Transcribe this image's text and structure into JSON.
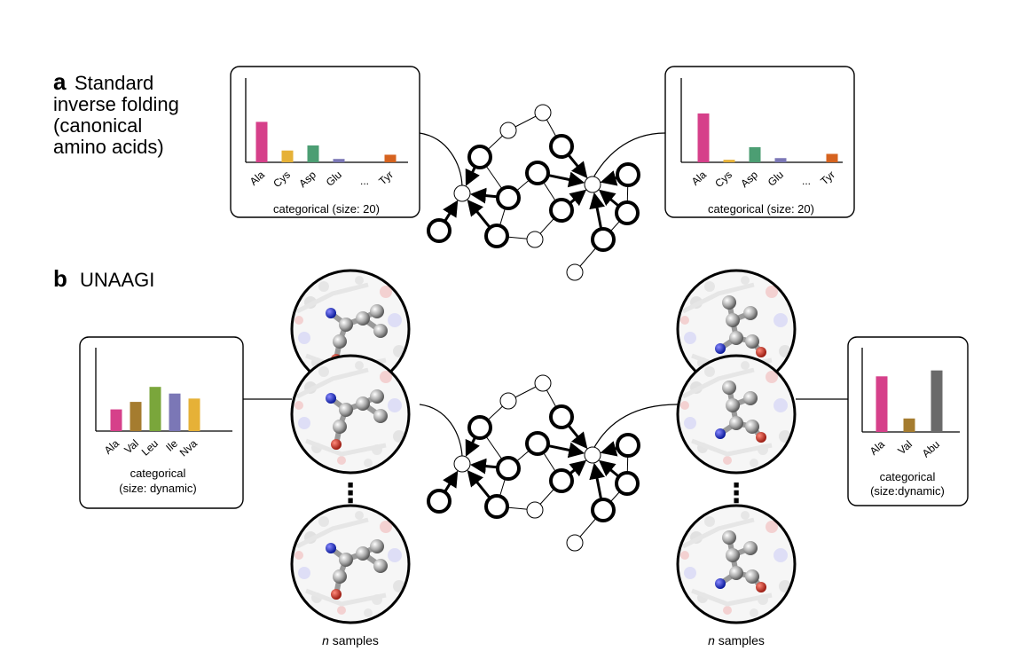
{
  "section_a": {
    "letter": "a",
    "title_lines": [
      "Standard",
      "inverse folding",
      "(canonical",
      "amino acids)"
    ]
  },
  "section_b": {
    "letter": "b",
    "title": "UNAAGI"
  },
  "chart_data": [
    {
      "type": "bar",
      "categories": [
        "Ala",
        "Cys",
        "Asp",
        "Glu",
        "...",
        "Tyr"
      ],
      "values": [
        0.48,
        0.14,
        0.2,
        0.04,
        0,
        0.09
      ],
      "colors": [
        "#d6408a",
        "#e6b137",
        "#4c9e73",
        "#7b77b6",
        "#ffffff",
        "#d6631f"
      ],
      "caption": "categorical (size: 20)"
    },
    {
      "type": "bar",
      "categories": [
        "Ala",
        "Cys",
        "Asp",
        "Glu",
        "...",
        "Tyr"
      ],
      "values": [
        0.58,
        0.03,
        0.18,
        0.05,
        0,
        0.1
      ],
      "colors": [
        "#d6408a",
        "#e6b137",
        "#4c9e73",
        "#7b77b6",
        "#ffffff",
        "#d6631f"
      ],
      "caption": "categorical (size: 20)"
    },
    {
      "type": "bar",
      "categories": [
        "Ala",
        "Val",
        "Leu",
        "Ile",
        "Nva"
      ],
      "values": [
        0.26,
        0.35,
        0.53,
        0.45,
        0.39
      ],
      "colors": [
        "#d6408a",
        "#a57c2f",
        "#7aa63b",
        "#7b77b6",
        "#e6b137"
      ],
      "caption_lines": [
        "categorical",
        "(size: dynamic)"
      ]
    },
    {
      "type": "bar",
      "categories": [
        "Ala",
        "Val",
        "Abu"
      ],
      "values": [
        0.66,
        0.16,
        0.73
      ],
      "colors": [
        "#d6408a",
        "#a57c2f",
        "#6a6a6a"
      ],
      "caption_lines": [
        "categorical",
        "(size:dynamic)"
      ]
    }
  ],
  "samples_label": {
    "italic": "n",
    "rest": " samples"
  },
  "ellipsis_dots": "⋮"
}
